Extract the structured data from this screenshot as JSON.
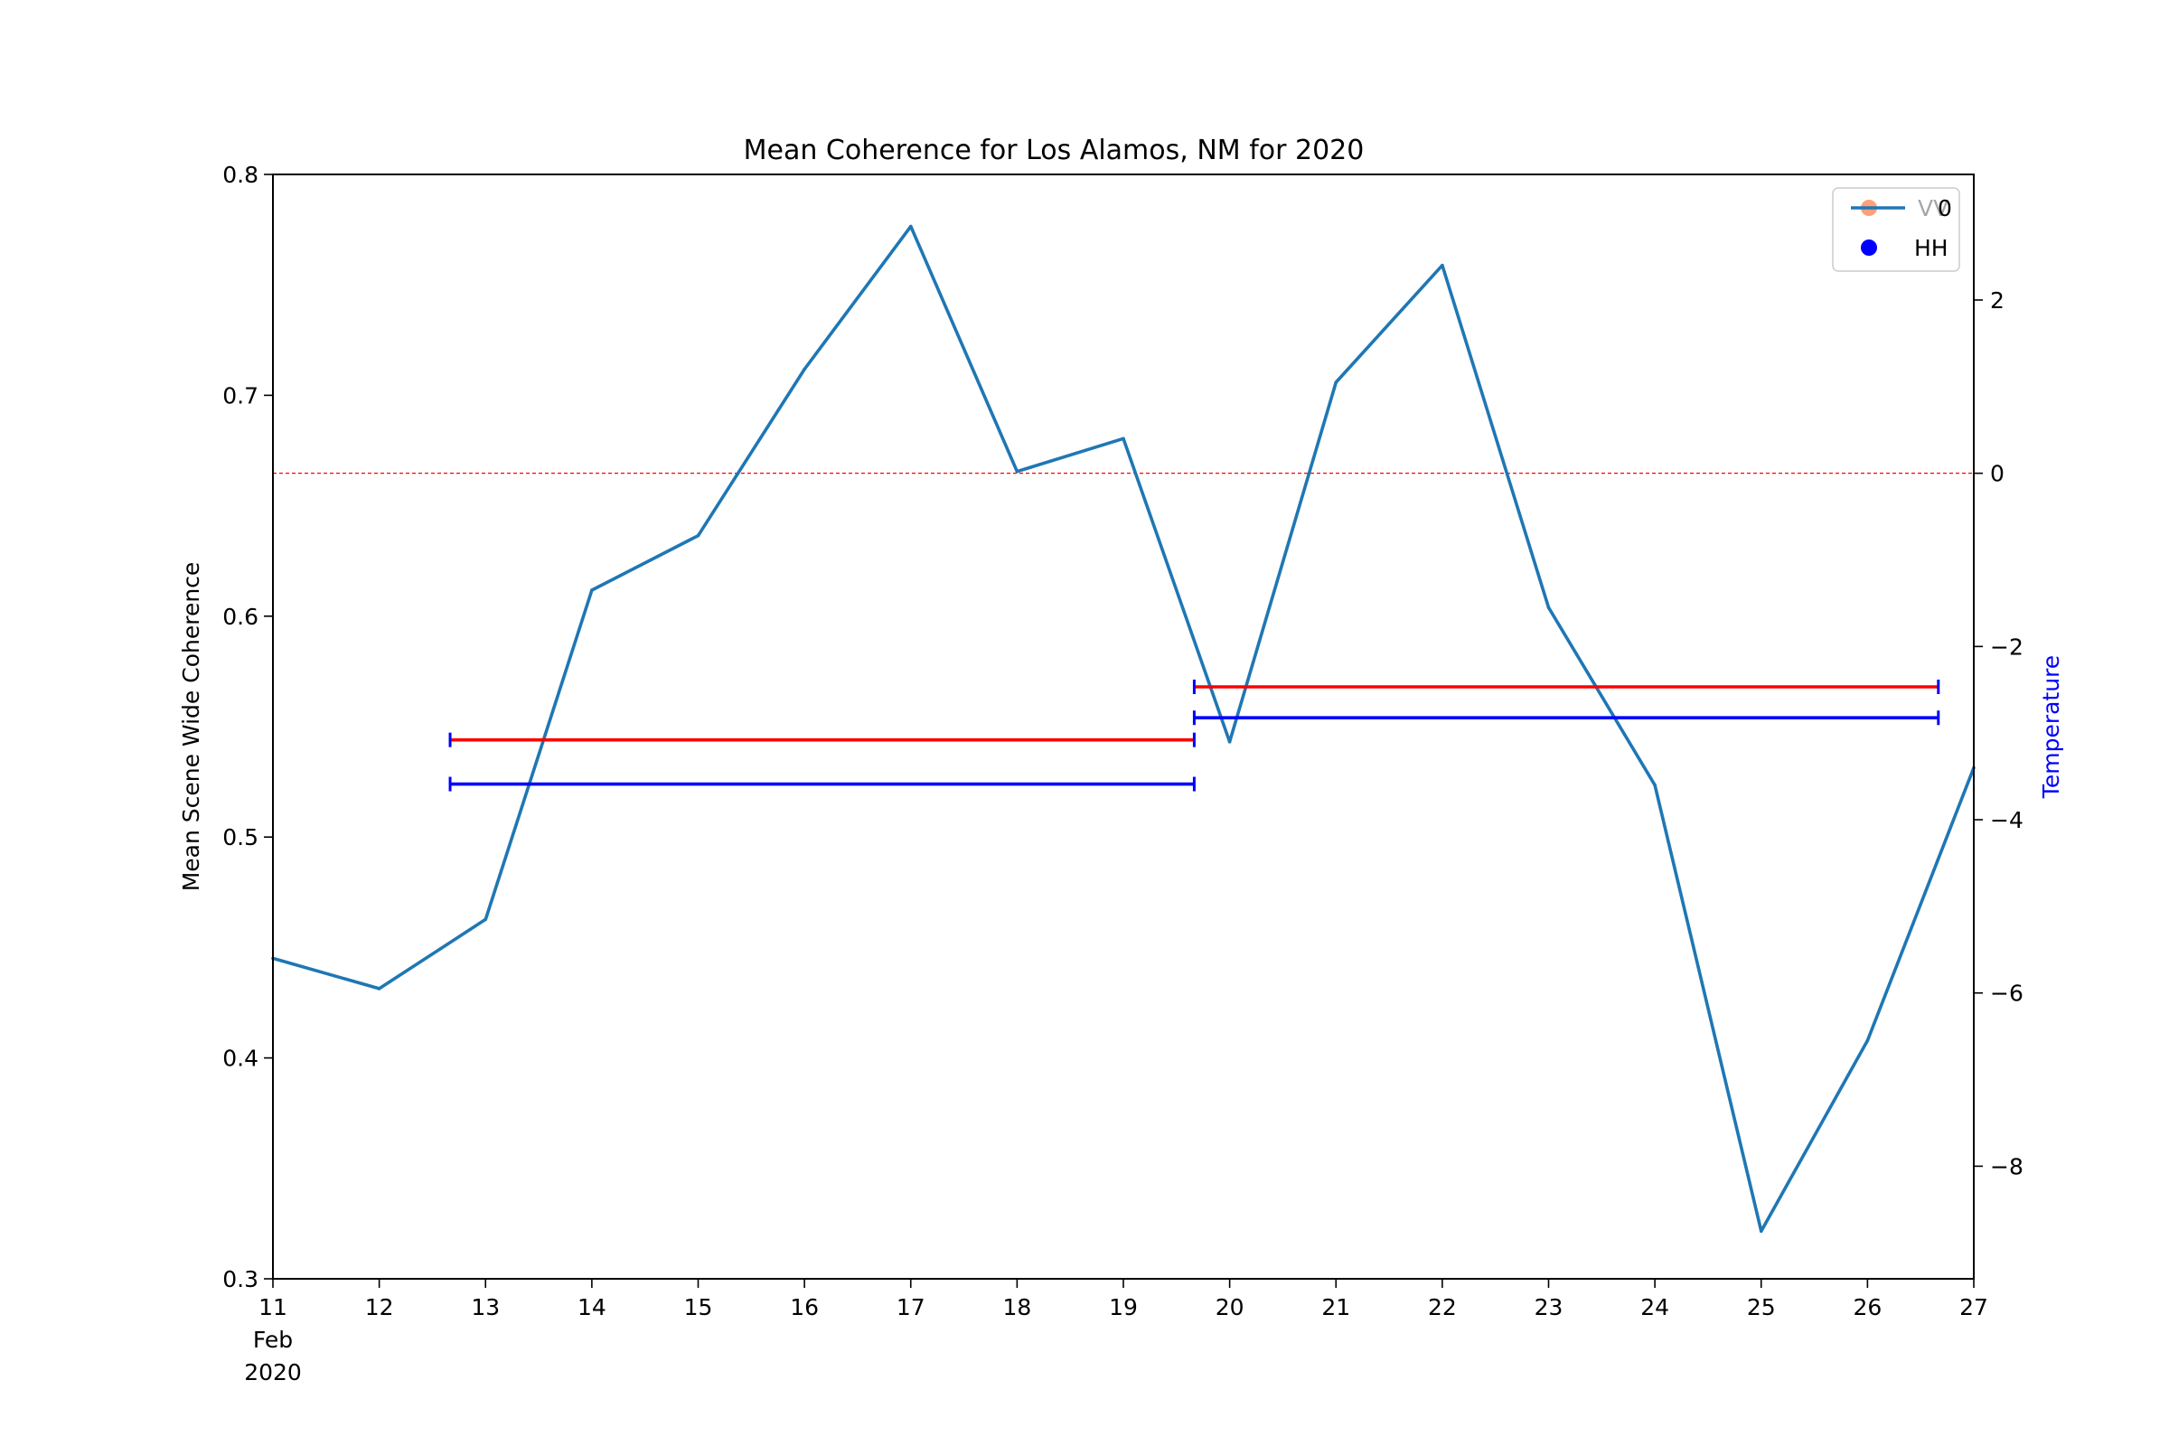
{
  "chart_data": {
    "type": "line",
    "title": "Mean Coherence for Los Alamos, NM for 2020",
    "ylabel": "Mean Scene Wide Coherence",
    "y2label": "Temperature",
    "y2label_color": "#0000ff",
    "x_tick_labels": [
      "11",
      "12",
      "13",
      "14",
      "15",
      "16",
      "17",
      "18",
      "19",
      "20",
      "21",
      "22",
      "23",
      "24",
      "25",
      "26",
      "27"
    ],
    "x_tick_sublabels": [
      "Feb",
      "2020"
    ],
    "xlim": [
      "2020-02-11",
      "2020-02-27"
    ],
    "ylim": [
      0.3,
      0.8
    ],
    "y_ticks": [
      0.3,
      0.4,
      0.5,
      0.6,
      0.7,
      0.8
    ],
    "y_tick_labels": [
      "0.3",
      "0.4",
      "0.5",
      "0.6",
      "0.7",
      "0.8"
    ],
    "y2lim": [
      -9.3,
      3.45
    ],
    "y2_ticks": [
      -8,
      -6,
      -4,
      -2,
      0,
      2
    ],
    "y2_tick_labels": [
      "−8",
      "−6",
      "−4",
      "−2",
      "0",
      "2"
    ],
    "series": [
      {
        "axis": "right",
        "color": "#1f77b4",
        "x": [
          "2020-02-11",
          "2020-02-12",
          "2020-02-13",
          "2020-02-14",
          "2020-02-15",
          "2020-02-16",
          "2020-02-17",
          "2020-02-18",
          "2020-02-19",
          "2020-02-20",
          "2020-02-21",
          "2020-02-22",
          "2020-02-23",
          "2020-02-24",
          "2020-02-25",
          "2020-02-26",
          "2020-02-27"
        ],
        "values": [
          -5.6,
          -5.95,
          -5.15,
          -1.35,
          -0.72,
          1.2,
          2.85,
          0.02,
          0.4,
          -3.1,
          1.05,
          2.4,
          -1.55,
          -3.6,
          -8.75,
          -6.55,
          -3.4
        ]
      }
    ],
    "reference_line": {
      "axis": "right",
      "value": 0,
      "color": "#ff0000",
      "style": "dashed"
    },
    "interval_bars": [
      {
        "name": "VV",
        "color": "#ff0000",
        "start": "2020-02-12T16:00",
        "end": "2020-02-19T16:00",
        "value": 0.544
      },
      {
        "name": "HH",
        "color": "#0000ff",
        "start": "2020-02-12T16:00",
        "end": "2020-02-19T16:00",
        "value": 0.524
      },
      {
        "name": "VV",
        "color": "#ff0000",
        "start": "2020-02-19T16:00",
        "end": "2020-02-26T16:00",
        "value": 0.568
      },
      {
        "name": "HH",
        "color": "#0000ff",
        "start": "2020-02-19T16:00",
        "end": "2020-02-26T16:00",
        "value": 0.554
      }
    ],
    "legend": {
      "position": "top-right",
      "entries": [
        {
          "label": "VV",
          "marker": "dot",
          "color": "#ffa07a"
        },
        {
          "label": "0",
          "marker": "line",
          "color": "#1f77b4"
        },
        {
          "label": "HH",
          "marker": "dot",
          "color": "#0000ff"
        }
      ]
    }
  }
}
